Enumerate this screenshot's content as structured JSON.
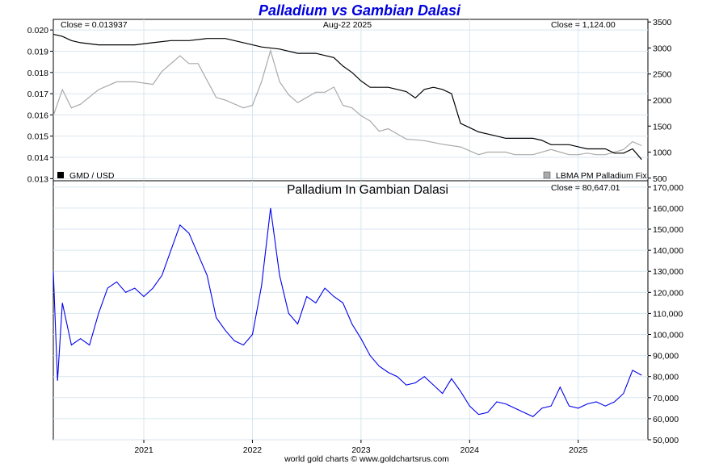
{
  "title": "Palladium vs Gambian Dalasi",
  "footer": "world gold charts © www.goldchartsrus.com",
  "colors": {
    "title": "#0000dd",
    "gmd_line": "#000000",
    "palladium_line": "#aaaaaa",
    "dalasi_line": "#0000ee",
    "grid": "#d8e6ef"
  },
  "chart_data": [
    {
      "type": "line",
      "panel": "top",
      "header_left": "Close = 0.013937",
      "header_center": "Aug-22  2025",
      "header_right": "Close = 1,124.00",
      "legend": [
        {
          "label": "GMD / USD",
          "swatch": "#000000"
        },
        {
          "label": "LBMA PM Palladium Fix",
          "swatch": "#aaaaaa"
        }
      ],
      "x_range": [
        "2020-03",
        "2025-08"
      ],
      "x_ticks": [
        "2021",
        "2022",
        "2023",
        "2024",
        "2025"
      ],
      "y_left": {
        "ticks": [
          "0.020",
          "0.019",
          "0.018",
          "0.017",
          "0.016",
          "0.015",
          "0.014",
          "0.013"
        ],
        "ylim": [
          0.0129,
          0.0205
        ]
      },
      "y_right": {
        "ticks": [
          "3500",
          "3000",
          "2500",
          "2000",
          "1500",
          "1000",
          "500"
        ],
        "ylim": [
          450,
          3550
        ]
      },
      "grid": true,
      "series": [
        {
          "name": "GMD / USD",
          "axis": "left",
          "x": [
            "2020-03",
            "2020-04",
            "2020-05",
            "2020-06",
            "2020-08",
            "2020-10",
            "2020-12",
            "2021-02",
            "2021-04",
            "2021-06",
            "2021-08",
            "2021-10",
            "2021-12",
            "2022-02",
            "2022-04",
            "2022-06",
            "2022-08",
            "2022-10",
            "2022-11",
            "2022-12",
            "2023-01",
            "2023-02",
            "2023-03",
            "2023-04",
            "2023-05",
            "2023-06",
            "2023-07",
            "2023-08",
            "2023-09",
            "2023-10",
            "2023-11",
            "2023-12",
            "2024-01",
            "2024-02",
            "2024-03",
            "2024-04",
            "2024-05",
            "2024-06",
            "2024-07",
            "2024-08",
            "2024-09",
            "2024-10",
            "2024-11",
            "2024-12",
            "2025-01",
            "2025-02",
            "2025-03",
            "2025-04",
            "2025-05",
            "2025-06",
            "2025-07",
            "2025-08"
          ],
          "values": [
            0.0198,
            0.0197,
            0.0195,
            0.0194,
            0.0193,
            0.0193,
            0.0193,
            0.0194,
            0.0195,
            0.0195,
            0.0196,
            0.0196,
            0.0194,
            0.0192,
            0.0191,
            0.0189,
            0.0189,
            0.0187,
            0.0183,
            0.018,
            0.0176,
            0.0173,
            0.0173,
            0.0173,
            0.0172,
            0.0171,
            0.0168,
            0.0172,
            0.0173,
            0.0172,
            0.017,
            0.0156,
            0.0154,
            0.0152,
            0.0151,
            0.015,
            0.0149,
            0.0149,
            0.0149,
            0.0149,
            0.0148,
            0.0146,
            0.0146,
            0.0146,
            0.0145,
            0.0144,
            0.0144,
            0.0144,
            0.0142,
            0.0142,
            0.0144,
            0.0139
          ]
        },
        {
          "name": "LBMA PM Palladium Fix",
          "axis": "right",
          "x": [
            "2020-03",
            "2020-04",
            "2020-05",
            "2020-06",
            "2020-08",
            "2020-10",
            "2020-12",
            "2021-02",
            "2021-03",
            "2021-05",
            "2021-06",
            "2021-07",
            "2021-09",
            "2021-10",
            "2021-12",
            "2022-01",
            "2022-02",
            "2022-03",
            "2022-04",
            "2022-05",
            "2022-06",
            "2022-07",
            "2022-08",
            "2022-09",
            "2022-10",
            "2022-11",
            "2022-12",
            "2023-01",
            "2023-02",
            "2023-03",
            "2023-04",
            "2023-06",
            "2023-08",
            "2023-10",
            "2023-12",
            "2024-02",
            "2024-03",
            "2024-04",
            "2024-05",
            "2024-06",
            "2024-08",
            "2024-10",
            "2024-11",
            "2024-12",
            "2025-01",
            "2025-02",
            "2025-03",
            "2025-04",
            "2025-05",
            "2025-06",
            "2025-07",
            "2025-08"
          ],
          "values": [
            1700,
            2200,
            1850,
            1920,
            2200,
            2350,
            2350,
            2300,
            2550,
            2850,
            2700,
            2700,
            2050,
            2000,
            1850,
            1900,
            2350,
            2950,
            2350,
            2100,
            1950,
            2050,
            2150,
            2150,
            2250,
            1900,
            1850,
            1700,
            1600,
            1400,
            1450,
            1250,
            1220,
            1150,
            1100,
            950,
            1000,
            1000,
            1000,
            950,
            950,
            1050,
            1000,
            950,
            950,
            980,
            950,
            950,
            1000,
            1050,
            1200,
            1124
          ]
        }
      ]
    },
    {
      "type": "line",
      "panel": "bottom",
      "title": "Palladium In Gambian Dalasi",
      "header_right": "Close = 80,647.01",
      "x_range": [
        "2020-03",
        "2025-08"
      ],
      "x_ticks": [
        "2021",
        "2022",
        "2023",
        "2024",
        "2025"
      ],
      "y_right": {
        "ticks": [
          "170,000",
          "160,000",
          "150,000",
          "140,000",
          "130,000",
          "120,000",
          "110,000",
          "100,000",
          "90,000",
          "80,000",
          "70,000",
          "60,000",
          "50,000"
        ],
        "ylim": [
          50000,
          173000
        ]
      },
      "grid": true,
      "series": [
        {
          "name": "Palladium In Gambian Dalasi",
          "x": [
            "2020-03",
            "2020-03-15",
            "2020-04",
            "2020-05",
            "2020-06",
            "2020-07",
            "2020-08",
            "2020-09",
            "2020-10",
            "2020-11",
            "2020-12",
            "2021-01",
            "2021-02",
            "2021-03",
            "2021-04",
            "2021-05",
            "2021-06",
            "2021-07",
            "2021-08",
            "2021-09",
            "2021-10",
            "2021-11",
            "2021-12",
            "2022-01",
            "2022-02",
            "2022-03",
            "2022-04",
            "2022-05",
            "2022-06",
            "2022-07",
            "2022-08",
            "2022-09",
            "2022-10",
            "2022-11",
            "2022-12",
            "2023-01",
            "2023-02",
            "2023-03",
            "2023-04",
            "2023-05",
            "2023-06",
            "2023-07",
            "2023-08",
            "2023-09",
            "2023-10",
            "2023-11",
            "2023-12",
            "2024-01",
            "2024-02",
            "2024-03",
            "2024-04",
            "2024-05",
            "2024-06",
            "2024-07",
            "2024-08",
            "2024-09",
            "2024-10",
            "2024-11",
            "2024-12",
            "2025-01",
            "2025-02",
            "2025-03",
            "2025-04",
            "2025-05",
            "2025-06",
            "2025-07",
            "2025-08"
          ],
          "values": [
            130000,
            78000,
            115000,
            95000,
            98000,
            95000,
            110000,
            122000,
            125000,
            120000,
            122000,
            118000,
            122000,
            128000,
            140000,
            152000,
            148000,
            138000,
            128000,
            108000,
            102000,
            97000,
            95000,
            100000,
            123000,
            160000,
            128000,
            110000,
            105000,
            118000,
            115000,
            122000,
            118000,
            115000,
            105000,
            98000,
            90000,
            85000,
            82000,
            80000,
            76000,
            77000,
            80000,
            76000,
            72000,
            79000,
            73000,
            66000,
            62000,
            63000,
            68000,
            67000,
            65000,
            63000,
            61000,
            65000,
            66000,
            75000,
            66000,
            65000,
            67000,
            68000,
            66000,
            68000,
            72000,
            83000,
            80647
          ]
        }
      ]
    }
  ]
}
